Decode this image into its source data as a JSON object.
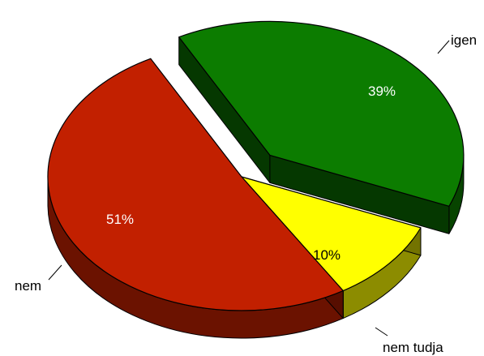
{
  "chart_data": {
    "type": "pie",
    "style": "3d-exploded",
    "categories": [
      "igen",
      "nem tudja",
      "nem"
    ],
    "values": [
      39,
      10,
      51
    ],
    "value_labels": [
      "39%",
      "10%",
      "51%"
    ],
    "colors": [
      "#0c7c00",
      "#ffff00",
      "#c22000"
    ],
    "exploded": [
      "igen"
    ]
  }
}
